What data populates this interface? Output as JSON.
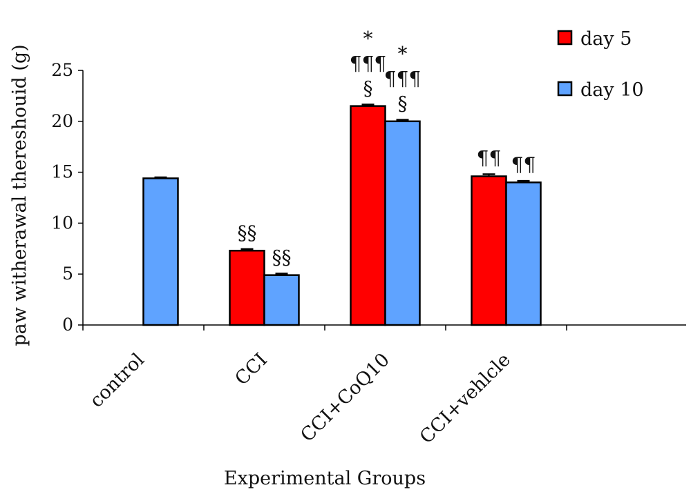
{
  "chart_data": {
    "type": "bar",
    "title": "",
    "xlabel": "Experimental Groups",
    "ylabel": "paw witherawal thereshouid (g)",
    "ylim": [
      0,
      25
    ],
    "yticks": [
      0,
      5,
      10,
      15,
      20,
      25
    ],
    "grid": false,
    "legend_position": "top-right",
    "categories": [
      "control",
      "CCI",
      "CCI+CoQ10",
      "CCI+vehlcle"
    ],
    "series": [
      {
        "name": "day 5",
        "color": "#ff0000",
        "values": [
          null,
          7.3,
          21.5,
          14.6
        ],
        "errors": [
          null,
          0.15,
          0.15,
          0.2
        ]
      },
      {
        "name": "day 10",
        "color": "#5fa3ff",
        "values": [
          14.4,
          4.9,
          20.0,
          14.0
        ],
        "errors": [
          0.1,
          0.15,
          0.15,
          0.15
        ]
      }
    ],
    "annotations": [
      {
        "category": 1,
        "series": 0,
        "lines": [
          "§§"
        ]
      },
      {
        "category": 1,
        "series": 1,
        "lines": [
          "§§"
        ]
      },
      {
        "category": 2,
        "series": 0,
        "lines": [
          "*",
          "¶¶¶",
          "§"
        ]
      },
      {
        "category": 2,
        "series": 1,
        "lines": [
          "*",
          "¶¶¶",
          "§"
        ]
      },
      {
        "category": 3,
        "series": 0,
        "lines": [
          "¶¶"
        ]
      },
      {
        "category": 3,
        "series": 1,
        "lines": [
          "¶¶"
        ]
      }
    ]
  }
}
